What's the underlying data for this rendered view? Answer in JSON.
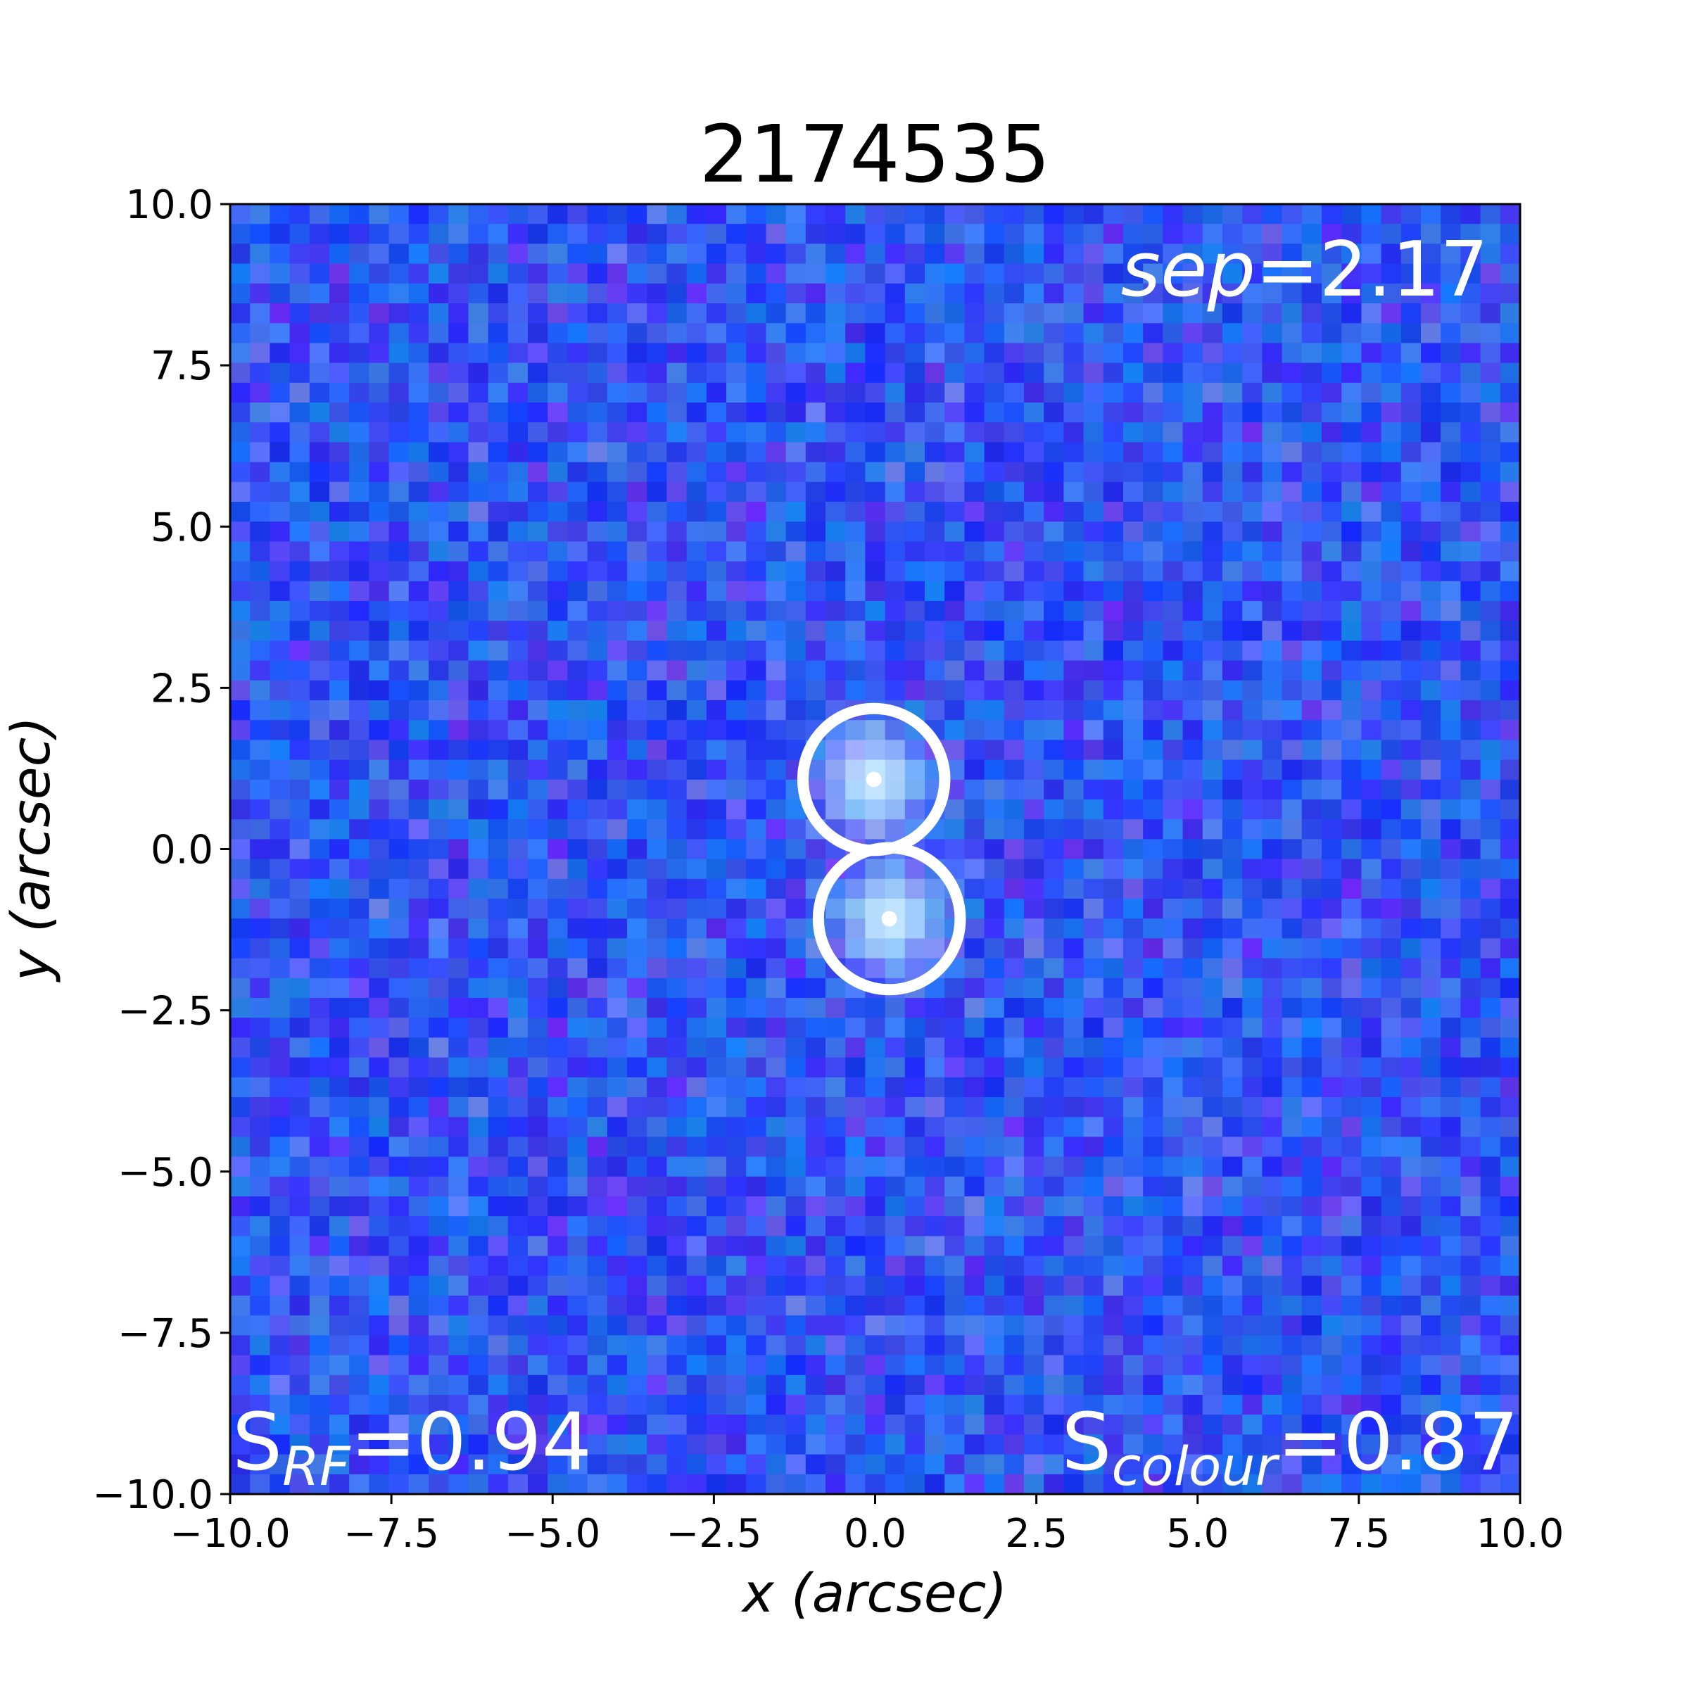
{
  "chart_data": {
    "type": "heatmap",
    "title": "2174535",
    "xlabel": {
      "var": "x",
      "unit": "(arcsec)"
    },
    "ylabel": {
      "var": "y",
      "unit": "(arcsec)"
    },
    "xlim": [
      -10.0,
      10.0
    ],
    "ylim": [
      -10.0,
      10.0
    ],
    "xticks": [
      -10.0,
      -7.5,
      -5.0,
      -2.5,
      0.0,
      2.5,
      5.0,
      7.5,
      10.0
    ],
    "yticks": [
      -10.0,
      -7.5,
      -5.0,
      -2.5,
      0.0,
      2.5,
      5.0,
      7.5,
      10.0
    ],
    "xtick_labels": [
      "−10.0",
      "−7.5",
      "−5.0",
      "−2.5",
      "0.0",
      "2.5",
      "5.0",
      "7.5",
      "10.0"
    ],
    "ytick_labels": [
      "−10.0",
      "−7.5",
      "−5.0",
      "−2.5",
      "0.0",
      "2.5",
      "5.0",
      "7.5",
      "10.0"
    ],
    "image_colormap": "blue background noise with a bright cyan-white double source at the centre",
    "grid": false,
    "sources": [
      {
        "x": -0.02,
        "y": 1.08,
        "radius": 1.1
      },
      {
        "x": 0.22,
        "y": -1.08,
        "radius": 1.1
      }
    ],
    "annotations": {
      "sep": {
        "label": "sep",
        "value": "=2.17"
      },
      "s_rf": {
        "label": "S",
        "subscript": "RF",
        "value": "=0.94"
      },
      "s_colour": {
        "label": "S",
        "subscript": "colour",
        "value": "=0.87"
      }
    }
  },
  "colors": {
    "background": "#ffffff",
    "pixel_base": "#2a4bf0",
    "source_core": "#d8ecff",
    "marker": "#ffffff",
    "text": "#000000",
    "annotation_text": "#ffffff"
  }
}
